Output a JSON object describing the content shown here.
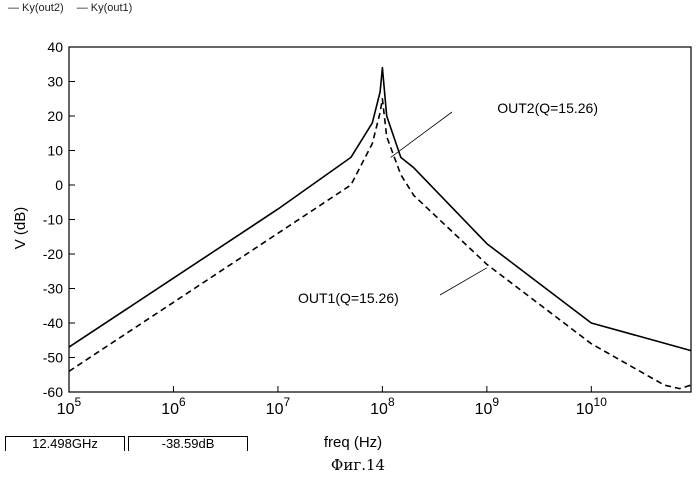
{
  "chart_data": {
    "type": "line",
    "title": "",
    "xlabel": "freq (Hz)",
    "ylabel": "V (dB)",
    "xscale": "log",
    "xlim": [
      100000,
      90000000000
    ],
    "ylim": [
      -60,
      40
    ],
    "yticks": [
      "40",
      "30",
      "20",
      "10",
      "0",
      "-10",
      "-20",
      "-30",
      "-40",
      "-50",
      "-60"
    ],
    "xticks": [
      {
        "base": "10",
        "exp": "5"
      },
      {
        "base": "10",
        "exp": "6"
      },
      {
        "base": "10",
        "exp": "7"
      },
      {
        "base": "10",
        "exp": "8"
      },
      {
        "base": "10",
        "exp": "9"
      },
      {
        "base": "10",
        "exp": "10"
      }
    ],
    "legend": [
      "— Ky(out2)",
      "— Ky(out1)"
    ],
    "series": [
      {
        "name": "Ky(out2)",
        "style": "solid",
        "x": [
          100000,
          1000000,
          10000000,
          50000000,
          80000000,
          95000000,
          100000000,
          110000000,
          150000000,
          200000000,
          1000000000,
          10000000000,
          90000000000
        ],
        "values": [
          -47,
          -27,
          -7,
          8,
          18,
          27,
          34,
          20,
          8,
          5,
          -17,
          -40,
          -48
        ]
      },
      {
        "name": "Ky(out1)",
        "style": "dashed",
        "x": [
          100000,
          1000000,
          10000000,
          50000000,
          80000000,
          95000000,
          100000000,
          110000000,
          150000000,
          200000000,
          1000000000,
          10000000000,
          50000000000,
          70000000000,
          90000000000
        ],
        "values": [
          -54,
          -34,
          -14,
          0,
          12,
          21,
          25,
          14,
          3,
          -3,
          -23,
          -46,
          -58,
          -59,
          -58
        ]
      }
    ],
    "annotations": [
      {
        "text": "OUT2(Q=15.26)",
        "x": 120000000,
        "y": 8
      },
      {
        "text": "OUT1(Q=15.26)",
        "x": 1000000000,
        "y": -24
      }
    ]
  },
  "readouts": [
    "12.498GHz",
    "-38.59dB"
  ],
  "caption": "Фиг.14"
}
